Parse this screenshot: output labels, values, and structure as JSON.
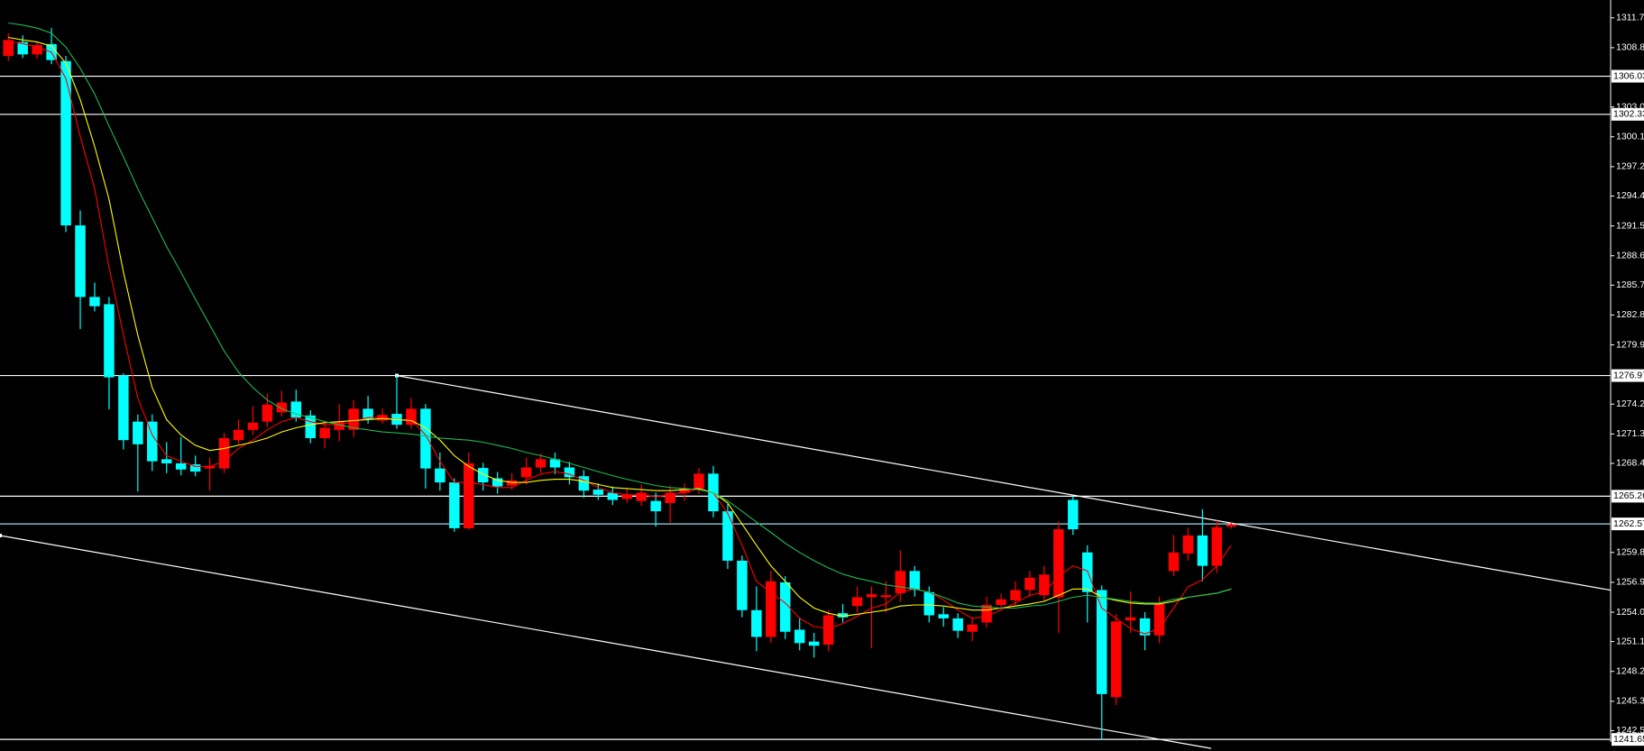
{
  "chart_data": {
    "type": "candlestick",
    "up_color": "#ff0000",
    "down_color": "#00ffff",
    "xlim": [
      -0.58,
      111.37
    ],
    "ylim": [
      1241.4,
      1313.43
    ],
    "yticks": [
      {
        "value": 1311.7,
        "label": "1311.70"
      },
      {
        "value": 1308.8,
        "label": "1308.80"
      },
      1303.05,
      1300.15,
      1297.25,
      {
        "value": 1294.4,
        "label": "1294.40"
      },
      {
        "value": 1291.5,
        "label": "1291.50"
      },
      {
        "value": 1288.6,
        "label": "1288.60"
      },
      1285.75,
      1282.85,
      1279.95,
      {
        "value": 1274.2,
        "label": "1274.20"
      },
      {
        "value": 1271.3,
        "label": "1271.30"
      },
      1268.45,
      {
        "value": 1259.8,
        "label": "1259.80"
      },
      {
        "value": 1256.9,
        "label": "1256.90"
      },
      {
        "value": 1254,
        "label": "1254.00"
      },
      1251.15,
      1248.25,
      1245.35,
      {
        "value": 1242.5,
        "label": "1242.50"
      }
    ],
    "open": [
      1308.0,
      1309.35,
      1308.15,
      1309.15,
      1307.5,
      1291.55,
      1284.6,
      1283.9,
      1277.0,
      1272.5,
      1272.5,
      1268.85,
      1268.45,
      1268.35,
      1267.95,
      1267.95,
      1270.7,
      1271.7,
      1272.5,
      1273.4,
      1274.45,
      1273.1,
      1270.9,
      1271.7,
      1271.7,
      1273.75,
      1272.6,
      1273.25,
      1272.2,
      1273.75,
      1267.95,
      1266.6,
      1262.15,
      1268.0,
      1267.0,
      1266.3,
      1267.1,
      1268.05,
      1268.85,
      1268.05,
      1267.2,
      1265.9,
      1265.6,
      1265.0,
      1264.8,
      1264.8,
      1264.6,
      1265.6,
      1266.0,
      1267.45,
      1263.8,
      1259.0,
      1254.2,
      1251.6,
      1256.9,
      1252.3,
      1251.15,
      1250.85,
      1253.9,
      1254.6,
      1255.45,
      1255.45,
      1255.85,
      1258.0,
      1255.95,
      1253.8,
      1253.4,
      1252.1,
      1253.0,
      1254.7,
      1255.15,
      1256.15,
      1255.65,
      1255.45,
      1264.9,
      1259.8,
      1256.15,
      1245.75,
      1253.2,
      1253.4,
      1251.75,
      1258.0,
      1259.7,
      1261.45,
      1258.5,
      1262.3
    ],
    "high": [
      1310.2,
      1310.0,
      1309.4,
      1310.7,
      1308.0,
      1293.0,
      1286.0,
      1284.6,
      1277.2,
      1273.2,
      1273.2,
      1270.5,
      1271.0,
      1269.2,
      1269.0,
      1271.4,
      1272.7,
      1274.0,
      1275.2,
      1275.5,
      1275.6,
      1273.6,
      1272.5,
      1274.2,
      1274.6,
      1275.0,
      1273.8,
      1276.97,
      1274.8,
      1274.2,
      1269.5,
      1267.0,
      1269.5,
      1268.5,
      1267.6,
      1267.5,
      1269.0,
      1269.4,
      1269.5,
      1268.6,
      1267.8,
      1266.5,
      1266.2,
      1266.0,
      1266.4,
      1265.6,
      1266.3,
      1266.5,
      1268.0,
      1268.2,
      1264.5,
      1259.5,
      1256.5,
      1258.0,
      1257.5,
      1253.5,
      1252.0,
      1254.2,
      1254.8,
      1256.5,
      1256.5,
      1257.0,
      1260.0,
      1258.5,
      1256.5,
      1254.5,
      1253.9,
      1253.5,
      1255.5,
      1255.8,
      1257.0,
      1258.0,
      1258.5,
      1262.8,
      1265.26,
      1260.5,
      1256.6,
      1253.8,
      1256.0,
      1254.0,
      1255.5,
      1261.5,
      1262.2,
      1264.0,
      1262.9,
      1262.8
    ],
    "low": [
      1307.5,
      1307.8,
      1307.7,
      1307.2,
      1290.9,
      1281.5,
      1283.2,
      1273.7,
      1269.8,
      1265.7,
      1267.7,
      1267.5,
      1267.3,
      1267.2,
      1265.8,
      1267.5,
      1270.3,
      1271.2,
      1272.0,
      1273.0,
      1272.5,
      1270.4,
      1269.9,
      1270.6,
      1271.0,
      1272.3,
      1272.3,
      1271.8,
      1271.8,
      1266.0,
      1265.8,
      1261.8,
      1262.0,
      1265.8,
      1265.5,
      1265.9,
      1266.4,
      1267.5,
      1267.4,
      1266.4,
      1265.1,
      1264.9,
      1264.4,
      1264.6,
      1264.3,
      1262.3,
      1262.7,
      1264.8,
      1265.5,
      1263.2,
      1258.2,
      1253.5,
      1250.2,
      1251.0,
      1251.4,
      1250.3,
      1249.6,
      1250.2,
      1253.0,
      1254.0,
      1250.5,
      1254.0,
      1255.0,
      1255.5,
      1253.0,
      1252.6,
      1251.5,
      1251.2,
      1252.5,
      1254.2,
      1254.6,
      1255.5,
      1255.0,
      1252.0,
      1261.5,
      1253.0,
      1241.6,
      1245.0,
      1252.0,
      1250.3,
      1251.0,
      1257.5,
      1259.0,
      1257.0,
      1257.8,
      1262.1
    ],
    "close": [
      1309.55,
      1308.15,
      1309.05,
      1307.6,
      1291.55,
      1284.6,
      1283.7,
      1276.8,
      1270.7,
      1270.3,
      1268.65,
      1268.45,
      1267.85,
      1267.65,
      1268.2,
      1270.9,
      1271.7,
      1272.4,
      1274.15,
      1274.35,
      1272.9,
      1270.9,
      1271.9,
      1272.5,
      1273.75,
      1272.7,
      1273.15,
      1272.2,
      1273.75,
      1267.95,
      1266.6,
      1262.15,
      1268.45,
      1266.6,
      1266.2,
      1266.8,
      1268.05,
      1268.85,
      1268.05,
      1267.1,
      1265.8,
      1265.4,
      1264.9,
      1265.4,
      1265.6,
      1263.8,
      1265.6,
      1266.0,
      1267.45,
      1263.8,
      1259.0,
      1254.2,
      1251.6,
      1257.0,
      1252.1,
      1251.0,
      1250.75,
      1253.7,
      1253.5,
      1255.45,
      1255.75,
      1255.65,
      1258.0,
      1256.15,
      1253.7,
      1253.4,
      1252.2,
      1252.8,
      1254.7,
      1255.25,
      1256.15,
      1257.35,
      1257.65,
      1262.05,
      1262.05,
      1255.95,
      1246.05,
      1253.1,
      1253.5,
      1251.75,
      1254.8,
      1259.8,
      1261.45,
      1258.5,
      1262.25,
      1262.5
    ],
    "series": [
      {
        "color": "#ff0000",
        "values": [
          1309.4,
          1309.2,
          1308.85,
          1308.35,
          1305.8,
          1300.2,
          1295.1,
          1287.5,
          1280.9,
          1274.8,
          1271.2,
          1269.2,
          1268.65,
          1268.15,
          1268.15,
          1268.65,
          1269.9,
          1270.7,
          1271.7,
          1272.5,
          1272.9,
          1272.5,
          1272.2,
          1272.2,
          1272.5,
          1272.9,
          1272.9,
          1272.7,
          1272.7,
          1271.2,
          1268.65,
          1266.6,
          1266.6,
          1266.4,
          1266.1,
          1266.1,
          1266.8,
          1267.4,
          1267.65,
          1267.4,
          1266.8,
          1266.1,
          1265.6,
          1265.4,
          1265.4,
          1265.2,
          1265.4,
          1265.6,
          1266.0,
          1265.6,
          1263.6,
          1260.5,
          1257.0,
          1255.95,
          1254.9,
          1253.4,
          1252.6,
          1252.4,
          1252.9,
          1253.6,
          1254.4,
          1254.8,
          1255.95,
          1256.25,
          1255.95,
          1255.2,
          1254.2,
          1253.4,
          1253.6,
          1254.2,
          1254.9,
          1255.65,
          1255.95,
          1257.5,
          1258.5,
          1258.0,
          1254.4,
          1253.4,
          1252.4,
          1251.9,
          1252.4,
          1254.4,
          1256.45,
          1257.15,
          1258.5,
          1260.5
        ]
      },
      {
        "color": "#ffff00",
        "values": [
          1309.8,
          1309.55,
          1309.35,
          1308.95,
          1307.3,
          1303.75,
          1299.2,
          1294.1,
          1287.0,
          1280.9,
          1275.8,
          1272.7,
          1271.2,
          1270.2,
          1269.7,
          1269.9,
          1270.2,
          1270.5,
          1270.9,
          1271.5,
          1271.9,
          1272.2,
          1272.4,
          1272.5,
          1272.6,
          1272.7,
          1272.8,
          1272.7,
          1272.6,
          1271.9,
          1270.7,
          1269.2,
          1268.15,
          1267.4,
          1266.8,
          1266.6,
          1266.6,
          1266.8,
          1266.9,
          1266.9,
          1266.7,
          1266.4,
          1266.1,
          1266.0,
          1265.9,
          1265.8,
          1265.8,
          1265.9,
          1266.0,
          1265.6,
          1264.6,
          1262.55,
          1260.5,
          1258.5,
          1257.0,
          1255.45,
          1254.4,
          1253.9,
          1253.6,
          1253.8,
          1254.0,
          1254.2,
          1254.6,
          1254.7,
          1254.7,
          1254.6,
          1254.4,
          1254.2,
          1254.2,
          1254.4,
          1254.6,
          1254.8,
          1255.05,
          1255.65,
          1256.25,
          1256.25,
          1255.45,
          1255.15,
          1254.9,
          1254.8,
          1254.8,
          1255.05,
          1255.45,
          1255.65,
          1255.85,
          1256.25
        ]
      },
      {
        "color": "#1db954",
        "values": [
          1311.2,
          1311.0,
          1310.7,
          1310.2,
          1308.85,
          1306.8,
          1304.3,
          1301.2,
          1298.2,
          1295.1,
          1292.3,
          1289.5,
          1287.0,
          1284.4,
          1281.9,
          1279.35,
          1277.3,
          1275.8,
          1274.6,
          1273.75,
          1273.25,
          1272.9,
          1272.5,
          1272.2,
          1271.9,
          1271.7,
          1271.5,
          1271.4,
          1271.3,
          1271.1,
          1270.9,
          1270.8,
          1270.7,
          1270.5,
          1270.2,
          1269.9,
          1269.5,
          1269.2,
          1268.85,
          1268.45,
          1268.05,
          1267.65,
          1267.25,
          1266.9,
          1266.6,
          1266.3,
          1266.1,
          1266.0,
          1265.9,
          1265.6,
          1264.8,
          1263.8,
          1262.75,
          1261.75,
          1260.7,
          1259.8,
          1259.0,
          1258.3,
          1257.7,
          1257.3,
          1257.0,
          1256.65,
          1256.45,
          1256.25,
          1255.95,
          1255.45,
          1254.9,
          1254.6,
          1254.5,
          1254.4,
          1254.4,
          1254.6,
          1254.7,
          1255.05,
          1255.45,
          1255.65,
          1255.45,
          1255.25,
          1255.05,
          1254.9,
          1254.9,
          1255.25,
          1255.45,
          1255.65,
          1255.85,
          1256.25
        ]
      }
    ],
    "hlines": [
      {
        "value": 1306.03,
        "color": "#ffffff"
      },
      {
        "value": 1302.33,
        "color": "#ffffff"
      },
      {
        "value": 1276.97,
        "color": "#ffffff"
      },
      {
        "value": 1265.26,
        "color": "#ffffff"
      },
      {
        "value": 1262.57,
        "color": "#9fdcec"
      },
      {
        "value": 1241.65,
        "color": "#ffffff"
      }
    ],
    "trendlines": [
      {
        "color": "#ffffff",
        "x": [
          27,
          111.37
        ],
        "values": [
          1276.97,
          1256.14
        ]
      },
      {
        "color": "#ffffff",
        "x": [
          -0.58,
          83.6
        ],
        "values": [
          1261.44,
          1240.78
        ]
      }
    ]
  }
}
